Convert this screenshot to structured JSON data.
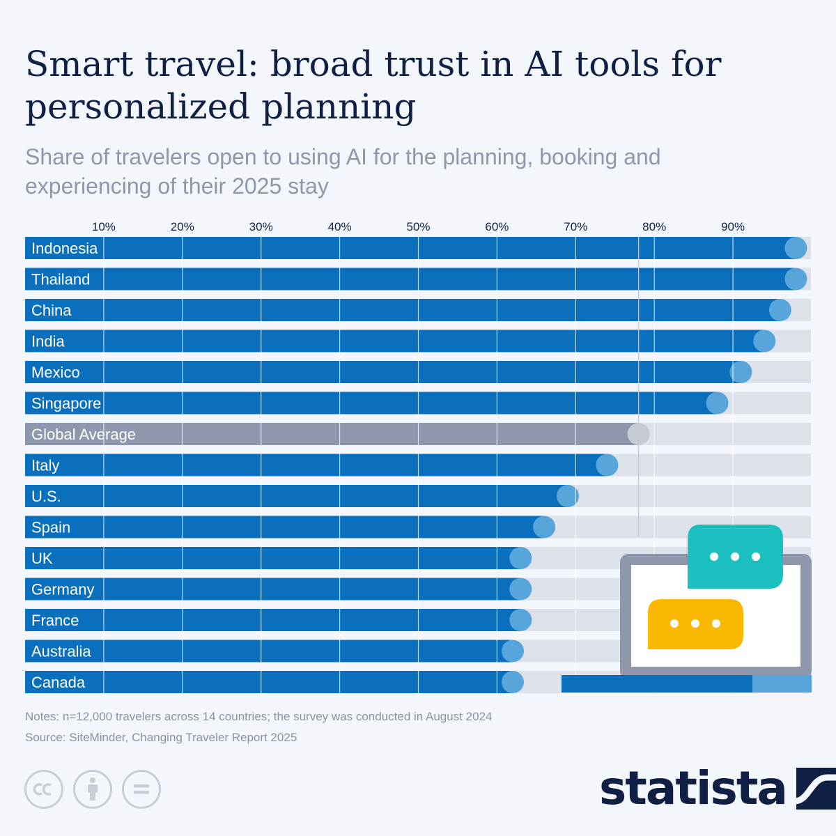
{
  "header": {
    "title": "Smart travel: broad trust in AI tools for personalized planning",
    "subtitle": "Share of travelers open to using AI for the planning, booking and experiencing of their 2025 stay"
  },
  "chart_data": {
    "type": "bar",
    "orientation": "horizontal",
    "unit": "%",
    "xlim": [
      0,
      100
    ],
    "ticks": [
      "10%",
      "20%",
      "30%",
      "40%",
      "50%",
      "60%",
      "70%",
      "80%",
      "90%"
    ],
    "tick_values": [
      10,
      20,
      30,
      40,
      50,
      60,
      70,
      80,
      90
    ],
    "categories": [
      "Indonesia",
      "Thailand",
      "China",
      "India",
      "Mexico",
      "Singapore",
      "Global Average",
      "Italy",
      "U.S.",
      "Spain",
      "UK",
      "Germany",
      "France",
      "Australia",
      "Canada"
    ],
    "values": [
      98,
      98,
      96,
      94,
      91,
      88,
      78,
      74,
      69,
      66,
      63,
      63,
      63,
      62,
      62
    ],
    "highlight": "Global Average",
    "grid": true,
    "colors": {
      "bar": "#0a6fbd",
      "highlight_bar": "#8e97ad",
      "track": "#dde2ea",
      "bubble": "#58a5dc",
      "highlight_bubble": "#c5cad5",
      "grid": "#ffffff",
      "average_line": "#c2c8d2"
    }
  },
  "illustration": {
    "icon": "laptop-chat-icon",
    "colors": {
      "frame": "#8f97ab",
      "teal": "#1cc0c0",
      "yellow": "#fbb800",
      "base": "#0a6fbd",
      "base_light": "#58a5dc"
    }
  },
  "footer": {
    "notes": "Notes: n=12,000 travelers across 14 countries; the survey was conducted in August 2024",
    "source": "Source: SiteMinder, Changing Traveler Report 2025",
    "license_icons": [
      "creative-commons-icon",
      "attribution-icon",
      "no-derivatives-icon"
    ],
    "brand": "statista",
    "brand_color": "#0f2044"
  }
}
